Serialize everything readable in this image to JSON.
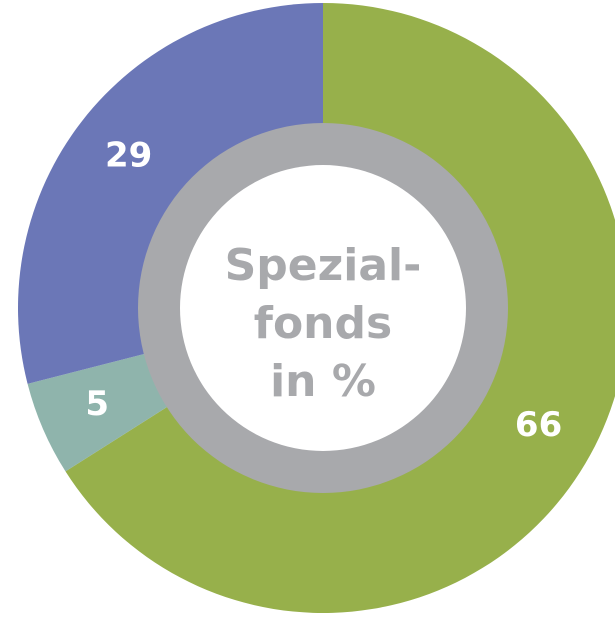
{
  "chart_data": {
    "type": "donut",
    "values": [
      66,
      5,
      29
    ],
    "colors": [
      "#97b04b",
      "#8fb4ac",
      "#6b77b7"
    ],
    "center_label": [
      "Spezial-",
      "fonds",
      "in %"
    ],
    "ring_color": "#a8a9ac"
  }
}
